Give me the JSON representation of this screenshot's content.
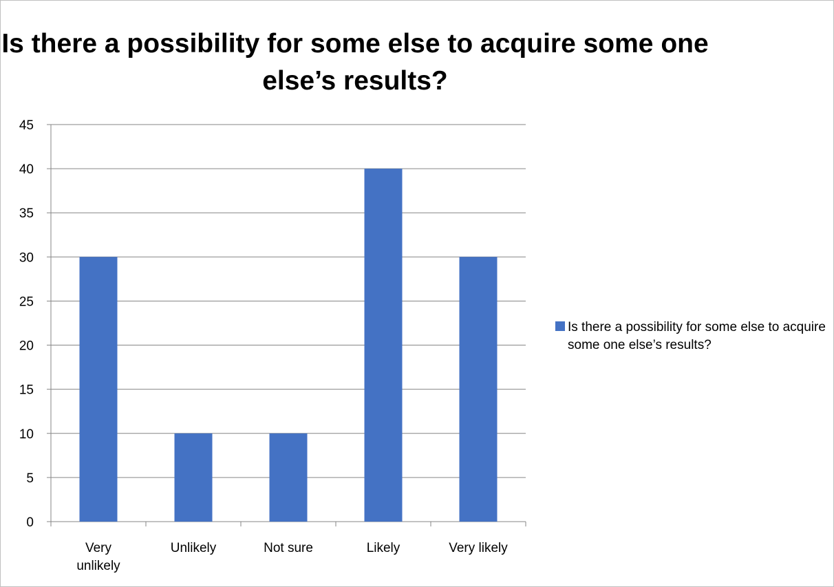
{
  "chart_data": {
    "type": "bar",
    "title": "Is there a possibility for some else to acquire some one else’s results?",
    "categories": [
      "Very unlikely",
      "Unlikely",
      "Not sure",
      "Likely",
      "Very likely"
    ],
    "series": [
      {
        "name": "Is there a possibility for some else to acquire some one else’s results?",
        "values": [
          30,
          10,
          10,
          40,
          30
        ],
        "color": "#4472c4"
      }
    ],
    "ylim": [
      0,
      45
    ],
    "yticks": [
      0,
      5,
      10,
      15,
      20,
      25,
      30,
      35,
      40,
      45
    ],
    "grid": true,
    "legend_position": "right"
  }
}
